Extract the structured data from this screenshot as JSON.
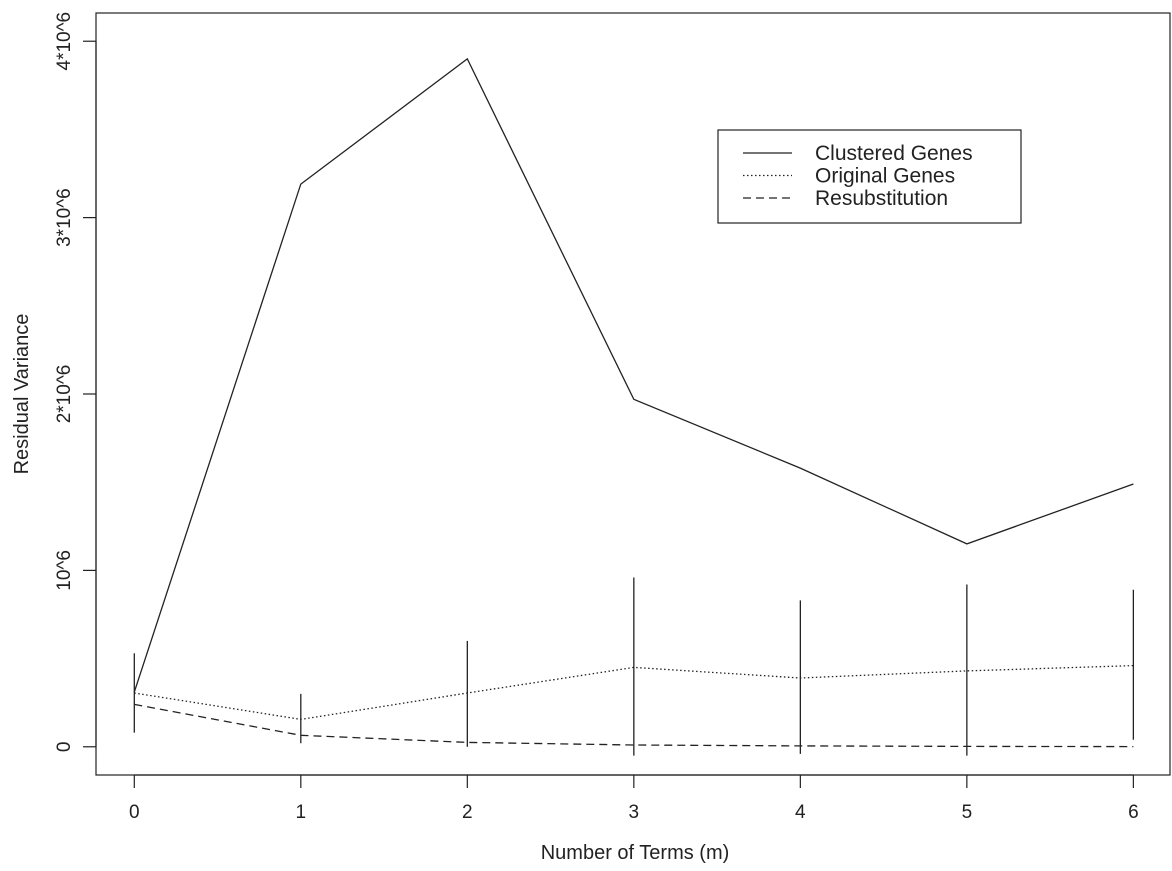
{
  "chart_data": {
    "type": "line",
    "title": "",
    "xlabel": "Number of Terms (m)",
    "ylabel": "Residual Variance",
    "x": [
      0,
      1,
      2,
      3,
      4,
      5,
      6
    ],
    "xlim": [
      -0.23,
      6.22
    ],
    "ylim": [
      -160000,
      4160000
    ],
    "x_ticks": [
      {
        "value": 0,
        "label": "0"
      },
      {
        "value": 1,
        "label": "1"
      },
      {
        "value": 2,
        "label": "2"
      },
      {
        "value": 3,
        "label": "3"
      },
      {
        "value": 4,
        "label": "4"
      },
      {
        "value": 5,
        "label": "5"
      },
      {
        "value": 6,
        "label": "6"
      }
    ],
    "y_ticks": [
      {
        "value": 0,
        "label": "0"
      },
      {
        "value": 1000000,
        "label": "10^6"
      },
      {
        "value": 2000000,
        "label": "2*10^6"
      },
      {
        "value": 3000000,
        "label": "3*10^6"
      },
      {
        "value": 4000000,
        "label": "4*10^6"
      }
    ],
    "grid": false,
    "legend_position": "top-right",
    "series": [
      {
        "name": "Clustered Genes",
        "style": "solid",
        "values": [
          310000,
          3190000,
          3900000,
          1970000,
          1580000,
          1150000,
          1490000
        ]
      },
      {
        "name": "Original Genes",
        "style": "dotted",
        "values": [
          305000,
          155000,
          305000,
          450000,
          390000,
          430000,
          460000
        ]
      },
      {
        "name": "Resubstitution",
        "style": "dashed",
        "values": [
          240000,
          65000,
          25000,
          10000,
          5000,
          2000,
          1000
        ]
      }
    ],
    "error_bars": [
      {
        "x": 0,
        "low": 80000,
        "high": 530000
      },
      {
        "x": 1,
        "low": 20000,
        "high": 300000
      },
      {
        "x": 2,
        "low": 0,
        "high": 600000
      },
      {
        "x": 3,
        "low": -50000,
        "high": 960000
      },
      {
        "x": 4,
        "low": -40000,
        "high": 830000
      },
      {
        "x": 5,
        "low": -50000,
        "high": 920000
      },
      {
        "x": 6,
        "low": 40000,
        "high": 890000
      }
    ],
    "colors": {
      "lines": "#222222",
      "background": "#ffffff"
    }
  }
}
